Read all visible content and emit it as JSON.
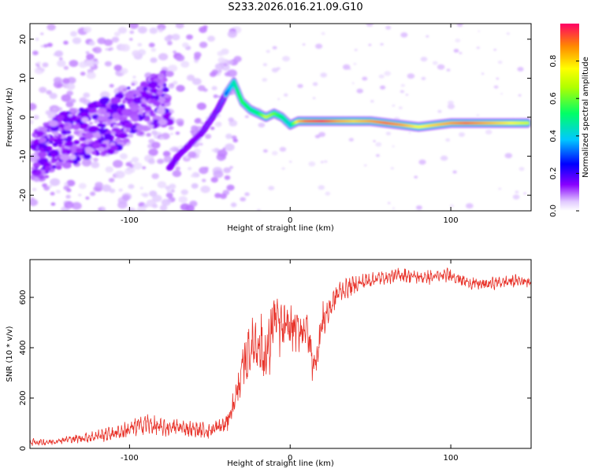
{
  "title": "S233.2026.016.21.09.G10",
  "colors": {
    "snr_line": "#e8332a",
    "spectrum_ridge": "#ff0000",
    "spectrum_scatter": "#7a00e6",
    "frame": "#000000"
  },
  "chart_data": [
    {
      "type": "heatmap",
      "xlabel": "Height of straight line (km)",
      "ylabel": "Frequency (Hz)",
      "xlim": [
        -162,
        150
      ],
      "ylim": [
        -24,
        24
      ],
      "xticks": [
        -100,
        0,
        100
      ],
      "yticks": [
        -20,
        -10,
        0,
        10,
        20
      ],
      "colorbar": {
        "label": "Normalized spectral amplitude",
        "range": [
          0,
          1
        ],
        "ticks": [
          "0.0",
          "0.2",
          "0.4",
          "0.6",
          "0.8"
        ],
        "colormap": "rainbow (purple to red)"
      },
      "ridge": {
        "x": [
          -40,
          -35,
          -30,
          -25,
          -20,
          -15,
          -10,
          -5,
          0,
          5,
          10,
          20,
          30,
          40,
          50,
          60,
          70,
          80,
          90,
          100,
          110,
          120,
          130,
          140,
          148
        ],
        "y": [
          6,
          9,
          4,
          2,
          1,
          0,
          1,
          0,
          -2,
          -1,
          -1,
          -1,
          -1,
          -1,
          -1,
          -1.5,
          -2,
          -2.5,
          -2,
          -1.5,
          -1.5,
          -1.5,
          -1.5,
          -1.5,
          -1.5
        ],
        "amplitude": [
          0.3,
          0.45,
          0.55,
          0.5,
          0.5,
          0.7,
          0.6,
          0.5,
          0.4,
          0.8,
          0.9,
          0.95,
          0.85,
          0.8,
          0.85,
          0.9,
          0.85,
          0.75,
          0.8,
          0.85,
          0.9,
          0.85,
          0.8,
          0.75,
          0.7
        ]
      },
      "secondary_branch": {
        "x": [
          -75,
          -70,
          -65,
          -60,
          -55,
          -50,
          -45,
          -40
        ],
        "y": [
          -13,
          -10,
          -8,
          -6,
          -4,
          -1,
          2,
          6
        ],
        "amplitude": [
          0.2,
          0.3,
          0.3,
          0.35,
          0.3,
          0.35,
          0.3,
          0.35
        ]
      },
      "scatter_band": {
        "x": [
          -160,
          -150,
          -140,
          -130,
          -120,
          -110,
          -100,
          -90,
          -80
        ],
        "y": [
          -10,
          -8,
          -6,
          -4,
          -3,
          -2,
          1,
          3,
          5
        ],
        "amplitude": [
          0.15,
          0.15,
          0.15,
          0.15,
          0.2,
          0.2,
          0.2,
          0.15,
          0.15
        ]
      }
    },
    {
      "type": "line",
      "xlabel": "Height of straight line (km)",
      "ylabel": "SNR (10 * v/v)",
      "xlim": [
        -162,
        150
      ],
      "ylim": [
        0,
        750
      ],
      "xticks": [
        -100,
        0,
        100
      ],
      "yticks": [
        0,
        200,
        400,
        600
      ],
      "series": [
        {
          "x": [
            -162,
            -150,
            -140,
            -130,
            -120,
            -110,
            -100,
            -90,
            -80,
            -70,
            -60,
            -50,
            -40,
            -35,
            -30,
            -25,
            -20,
            -15,
            -10,
            -5,
            0,
            5,
            10,
            15,
            20,
            25,
            30,
            40,
            50,
            60,
            70,
            80,
            90,
            100,
            110,
            120,
            130,
            140,
            150
          ],
          "y": [
            25,
            25,
            35,
            40,
            50,
            60,
            75,
            100,
            80,
            85,
            75,
            70,
            95,
            180,
            300,
            400,
            430,
            350,
            520,
            470,
            480,
            470,
            480,
            320,
            500,
            560,
            620,
            650,
            670,
            680,
            690,
            680,
            680,
            690,
            660,
            650,
            660,
            665,
            665
          ],
          "spread": [
            20,
            20,
            22,
            25,
            35,
            40,
            50,
            60,
            50,
            45,
            45,
            45,
            60,
            80,
            140,
            160,
            200,
            200,
            200,
            150,
            120,
            120,
            120,
            120,
            120,
            80,
            60,
            50,
            45,
            40,
            40,
            40,
            40,
            40,
            35,
            35,
            35,
            35,
            35
          ]
        }
      ]
    }
  ]
}
